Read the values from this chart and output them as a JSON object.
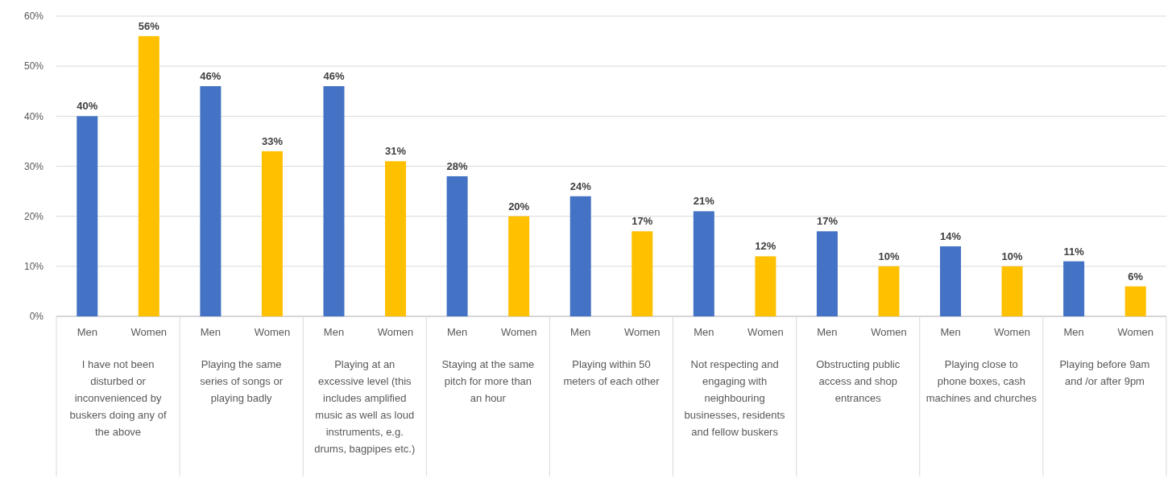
{
  "chart_data": {
    "type": "bar",
    "categories": [
      "I have not been disturbed or inconvenienced by buskers doing any of the above",
      "Playing the same series of songs or playing badly",
      "Playing at an excessive level (this includes amplified music as well as loud instruments, e.g. drums, bagpipes etc.)",
      "Staying at the same pitch for more than an hour",
      "Playing within 50 meters of each other",
      "Not respecting and engaging with neighbouring businesses, residents and fellow buskers",
      "Obstructing public access and shop entrances",
      "Playing close to phone boxes, cash machines and churches",
      "Playing before 9am and /or after 9pm"
    ],
    "series": [
      {
        "name": "Men",
        "color": "#4472c4",
        "values": [
          40,
          46,
          46,
          28,
          24,
          21,
          17,
          14,
          11
        ],
        "value_labels": [
          "40%",
          "46%",
          "46%",
          "28%",
          "24%",
          "21%",
          "17%",
          "14%",
          "11%"
        ]
      },
      {
        "name": "Women",
        "color": "#ffc000",
        "values": [
          56,
          33,
          31,
          20,
          17,
          12,
          10,
          10,
          6
        ],
        "value_labels": [
          "56%",
          "33%",
          "31%",
          "20%",
          "17%",
          "12%",
          "10%",
          "10%",
          "6%"
        ]
      }
    ],
    "ylim": [
      0,
      60
    ],
    "yticks": [
      {
        "value": 0,
        "label": "0%"
      },
      {
        "value": 10,
        "label": "10%"
      },
      {
        "value": 20,
        "label": "20%"
      },
      {
        "value": 30,
        "label": "30%"
      },
      {
        "value": 40,
        "label": "40%"
      },
      {
        "value": 50,
        "label": "50%"
      },
      {
        "value": 60,
        "label": "60%"
      }
    ],
    "grid": "y"
  }
}
